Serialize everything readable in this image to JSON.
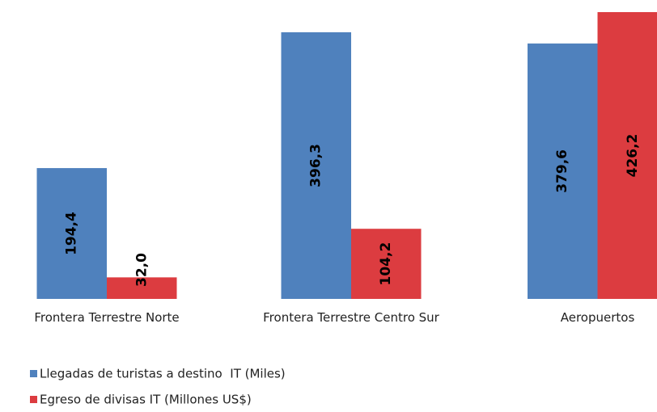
{
  "chart_data": {
    "type": "bar",
    "categories": [
      "Frontera Terrestre Norte",
      "Frontera Terrestre Centro Sur",
      "Aeropuertos"
    ],
    "series": [
      {
        "name": "Llegadas de turistas a destino  IT (Miles)",
        "color": "#4f81bd",
        "values": [
          194.4,
          396.3,
          379.6
        ],
        "value_labels": [
          "194,4",
          "396,3",
          "379,6"
        ]
      },
      {
        "name": "Egreso de divisas IT (Millones US$)",
        "color": "#dc3c40",
        "values": [
          32.0,
          104.2,
          426.2
        ],
        "value_labels": [
          "32,0",
          "104,2",
          "426,2"
        ]
      }
    ],
    "legend": "bottom-left"
  }
}
